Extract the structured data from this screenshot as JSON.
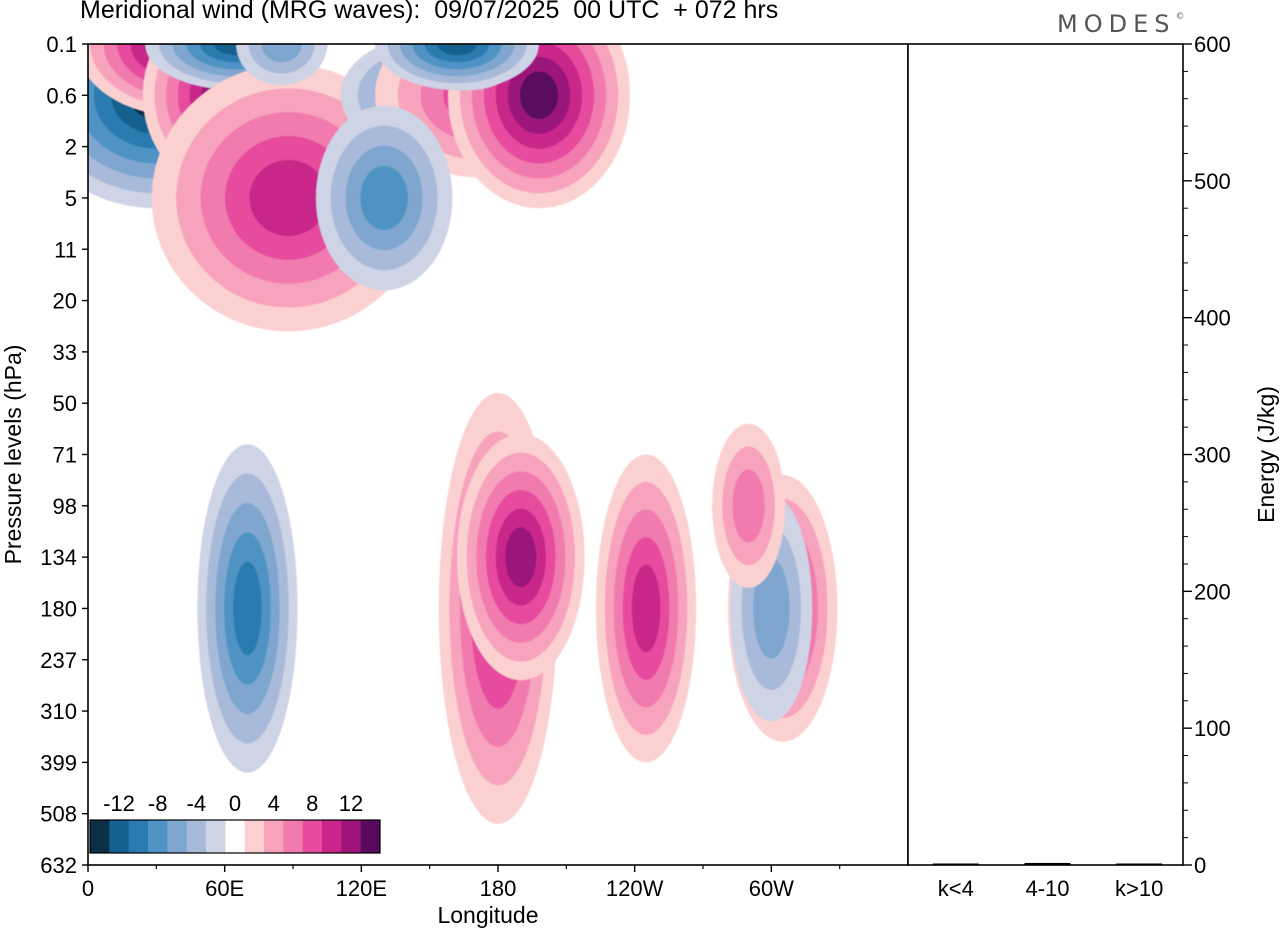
{
  "title": "Meridional wind (MRG waves):  09/07/2025  00 UTC  + 072 hrs",
  "brand": "MODES",
  "brand_mark": "©",
  "chart_data": [
    {
      "type": "heatmap",
      "subtype": "filled-contour",
      "xlabel": "Longitude",
      "ylabel": "Pressure levels (hPa)",
      "x_ticks": [
        "0",
        "60E",
        "120E",
        "180",
        "120W",
        "60W"
      ],
      "y_ticks": [
        "0.1",
        "0.6",
        "2",
        "5",
        "11",
        "20",
        "33",
        "50",
        "71",
        "98",
        "134",
        "180",
        "237",
        "310",
        "399",
        "508",
        "632"
      ],
      "colorbar": {
        "labels": [
          "-12",
          "-8",
          "-4",
          "0",
          "4",
          "8",
          "12"
        ],
        "levels": [
          -14,
          -12,
          -10,
          -8,
          -6,
          -4,
          -2,
          2,
          4,
          6,
          8,
          10,
          12,
          14
        ],
        "colors": [
          "#0b2f47",
          "#15618f",
          "#2a7bb0",
          "#4f93c4",
          "#7ea6cf",
          "#a7bad9",
          "#cfd3e6",
          "#ffffff",
          "#fbd0d0",
          "#f7a3bd",
          "#f17aae",
          "#e64b9e",
          "#c9258a",
          "#9b157a",
          "#5a0a5e"
        ]
      },
      "features": [
        {
          "sign": "neg",
          "lon": 30,
          "level": "0.6",
          "peak": -14
        },
        {
          "sign": "pos",
          "lon": 40,
          "level": "0.1",
          "peak": 14
        },
        {
          "sign": "pos",
          "lon": 58,
          "level": "0.6",
          "peak": 12
        },
        {
          "sign": "neg",
          "lon": 65,
          "level": "0.1",
          "peak": -12
        },
        {
          "sign": "pos",
          "lon": 88,
          "level": "5",
          "peak": 10
        },
        {
          "sign": "neg",
          "lon": 145,
          "level": "0.6",
          "peak": -8
        },
        {
          "sign": "pos",
          "lon": 172,
          "level": "0.6",
          "peak": 8
        },
        {
          "sign": "pos",
          "lon": 198,
          "level": "0.6",
          "peak": 14
        },
        {
          "sign": "neg",
          "lon": 85,
          "level": "1",
          "peak": -6
        },
        {
          "sign": "neg",
          "lon": 130,
          "level": "5",
          "peak": -8
        },
        {
          "sign": "neg",
          "lon": 168,
          "level": "1",
          "peak": -8
        },
        {
          "sign": "neg",
          "lon": 162,
          "level": "0.1",
          "peak": -12
        },
        {
          "sign": "pos",
          "lon": 180,
          "level": "180",
          "peak": 10
        },
        {
          "sign": "pos",
          "lon": 190,
          "level": "134",
          "peak": 12
        },
        {
          "sign": "pos",
          "lon": 305,
          "level": "180",
          "peak": 10
        },
        {
          "sign": "neg",
          "lon": 70,
          "level": "180",
          "peak": -10
        },
        {
          "sign": "neg",
          "lon": 300,
          "level": "180",
          "peak": -6
        },
        {
          "sign": "pos",
          "lon": 245,
          "level": "180",
          "peak": 10
        },
        {
          "sign": "pos",
          "lon": 290,
          "level": "98",
          "peak": 6
        }
      ]
    },
    {
      "type": "bar",
      "categories": [
        "k<4",
        "4-10",
        "k>10"
      ],
      "values": [
        0.5,
        1.5,
        0.3
      ],
      "ylabel": "Energy (J/kg)",
      "ylim": [
        0,
        600
      ],
      "y_ticks": [
        "0",
        "100",
        "200",
        "300",
        "400",
        "500",
        "600"
      ]
    }
  ]
}
